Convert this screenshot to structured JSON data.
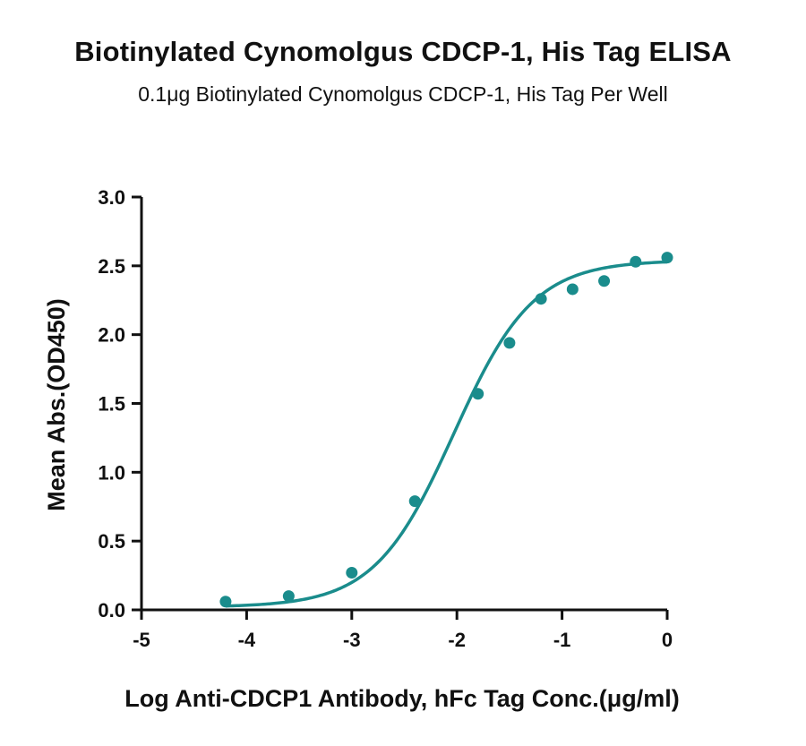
{
  "chart_data": {
    "type": "scatter",
    "title": "Biotinylated Cynomolgus CDCP-1, His Tag ELISA",
    "subtitle": "0.1μg Biotinylated Cynomolgus CDCP-1, His Tag Per Well",
    "xlabel": "Log Anti-CDCP1 Antibody, hFc Tag Conc.(μg/ml)",
    "ylabel": "Mean Abs.(OD450)",
    "xlim": [
      -5,
      0
    ],
    "ylim": [
      0,
      3.0
    ],
    "x_ticks": [
      "-5",
      "-4",
      "-3",
      "-2",
      "-1",
      "0"
    ],
    "y_ticks": [
      "0.0",
      "0.5",
      "1.0",
      "1.5",
      "2.0",
      "2.5",
      "3.0"
    ],
    "grid": false,
    "color": "#1a8c8c",
    "series": [
      {
        "x": [
          -4.2,
          -3.6,
          -3.0,
          -2.4,
          -1.8,
          -1.5,
          -1.2,
          -0.9,
          -0.6,
          -0.3,
          0.0
        ],
        "y": [
          0.06,
          0.1,
          0.27,
          0.79,
          1.57,
          1.94,
          2.26,
          2.33,
          2.39,
          2.53,
          2.56
        ]
      }
    ],
    "fit_curve": {
      "model": "4PL",
      "bottom": 0.02,
      "top": 2.54,
      "log_ec50": -2.03,
      "hill": 1.15
    }
  }
}
